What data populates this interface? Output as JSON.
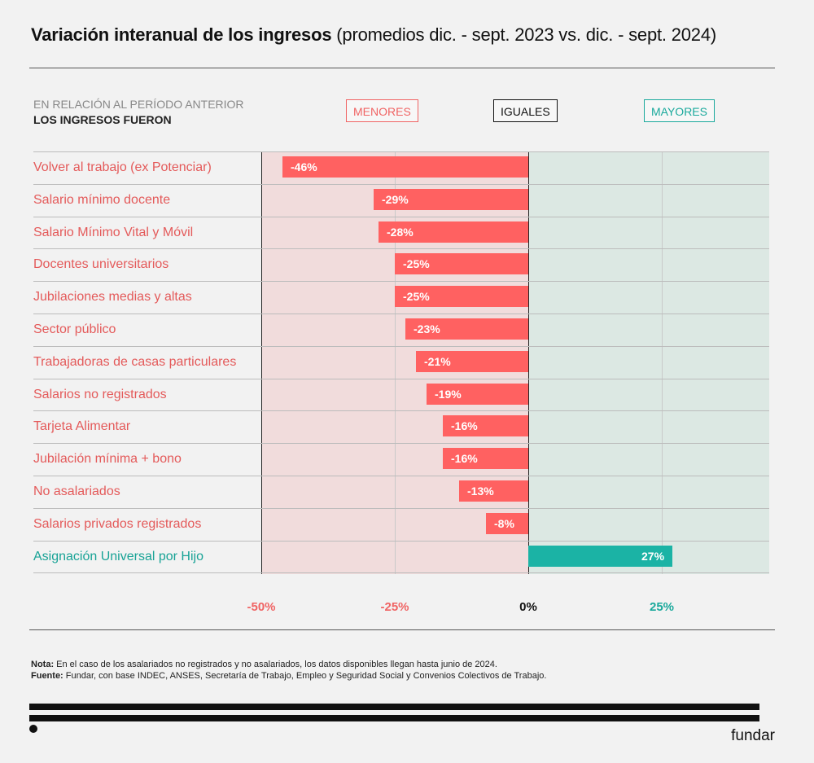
{
  "title": {
    "bold": "Variación interanual de los ingresos",
    "regular": "(promedios dic. - sept. 2023 vs. dic. - sept. 2024)"
  },
  "header": {
    "line1": "EN RELACIÓN AL PERÍODO ANTERIOR",
    "line2": "LOS INGRESOS FUERON"
  },
  "legend": {
    "menores": "MENORES",
    "iguales": "IGUALES",
    "mayores": "MAYORES"
  },
  "colors": {
    "negative": "#ff6161",
    "positive": "#1bb3a5",
    "negative_zone": "#f1dcdc",
    "positive_zone": "#dce8e3"
  },
  "chart_data": {
    "type": "bar",
    "orientation": "horizontal",
    "title": "Variación interanual de los ingresos (promedios dic. - sept. 2023 vs. dic. - sept. 2024)",
    "xlabel": "",
    "ylabel": "",
    "xlim": [
      -50,
      45
    ],
    "grid": true,
    "categories": [
      "Volver al trabajo (ex Potenciar)",
      "Salario mínimo docente",
      "Salario Mínimo Vital y Móvil",
      "Docentes universitarios",
      "Jubilaciones medias y altas",
      "Sector público",
      "Trabajadoras de casas particulares",
      "Salarios no registrados",
      "Tarjeta Alimentar",
      "Jubilación mínima + bono",
      "No asalariados",
      "Salarios privados registrados",
      "Asignación Universal por Hijo"
    ],
    "values": [
      -46,
      -29,
      -28,
      -25,
      -25,
      -23,
      -21,
      -19,
      -16,
      -16,
      -13,
      -8,
      27
    ],
    "data_labels": [
      "-46%",
      "-29%",
      "-28%",
      "-25%",
      "-25%",
      "-23%",
      "-21%",
      "-19%",
      "-16%",
      "-16%",
      "-13%",
      "-8%",
      "27%"
    ],
    "ticks": [
      {
        "value": -50,
        "label": "-50%"
      },
      {
        "value": -25,
        "label": "-25%"
      },
      {
        "value": 0,
        "label": "0%"
      },
      {
        "value": 25,
        "label": "25%"
      }
    ]
  },
  "notes": {
    "nota_label": "Nota:",
    "nota_text": " En el caso de los asalariados no registrados y no asalariados, los datos disponibles llegan hasta junio de 2024.",
    "fuente_label": "Fuente:",
    "fuente_text": " Fundar, con base INDEC, ANSES, Secretaría de Trabajo, Empleo y Seguridad Social y Convenios Colectivos de Trabajo."
  },
  "brand": "fundar"
}
